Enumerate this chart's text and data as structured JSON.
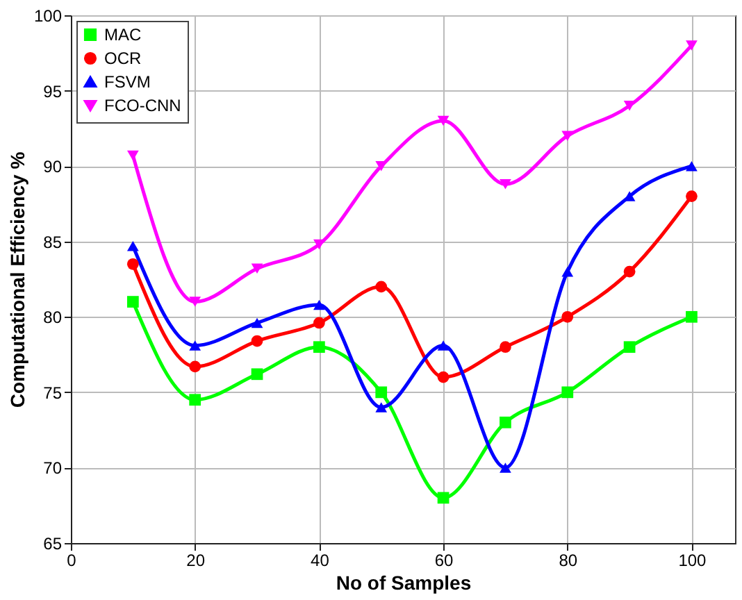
{
  "chart_data": {
    "type": "line",
    "xlabel": "No of Samples",
    "ylabel": "Computational Efficiency %",
    "x": [
      10,
      20,
      30,
      40,
      50,
      60,
      70,
      80,
      90,
      100
    ],
    "series": [
      {
        "name": "MAC",
        "color": "#00ff00",
        "marker": "square",
        "values": [
          81,
          74.5,
          76.2,
          78,
          75,
          68,
          73,
          75,
          78,
          80
        ]
      },
      {
        "name": "OCR",
        "color": "#ff0000",
        "marker": "circle",
        "values": [
          83.5,
          76.7,
          78.4,
          79.6,
          82,
          76,
          78,
          80,
          83,
          88
        ]
      },
      {
        "name": "FSVM",
        "color": "#0000ff",
        "marker": "triangle",
        "values": [
          84.7,
          78.1,
          79.6,
          80.8,
          74,
          78.1,
          70,
          83,
          88,
          90
        ]
      },
      {
        "name": "FCO-CNN",
        "color": "#ff00ff",
        "marker": "triangle-down",
        "values": [
          90.7,
          81,
          83.2,
          84.8,
          90,
          93,
          88.8,
          92,
          94,
          98
        ]
      }
    ],
    "xlim": [
      0,
      107
    ],
    "xticks": [
      0,
      20,
      40,
      60,
      80,
      100
    ],
    "ylim": [
      65,
      100
    ],
    "yticks": [
      65,
      70,
      75,
      80,
      85,
      90,
      95,
      100
    ],
    "grid": true,
    "legend": "top left",
    "line_style": "solid"
  }
}
